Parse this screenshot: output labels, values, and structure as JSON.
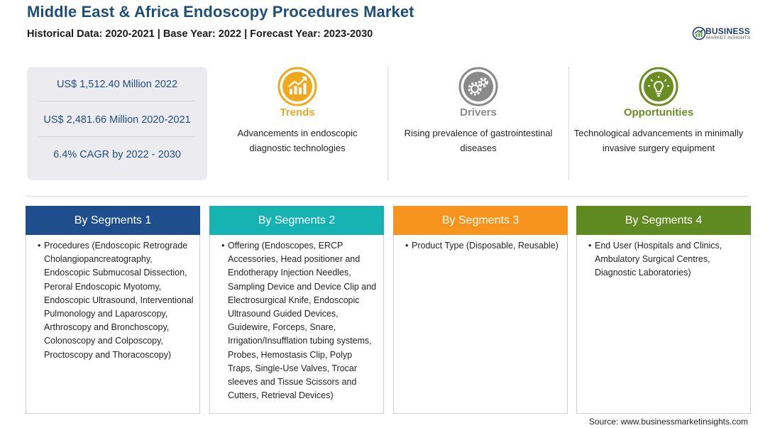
{
  "header": {
    "title": "Middle East & Africa Endoscopy Procedures Market",
    "subtitle": "Historical Data: 2020-2021 | Base Year: 2022 | Forecast Year: 2023-2030"
  },
  "logo": {
    "word": "BUSINESS",
    "sub": "MARKET INSIGHTS",
    "color": "#1f3d6b",
    "accent": "#6aa84f"
  },
  "stats": [
    "US$ 1,512.40 Million 2022",
    "US$ 2,481.66 Million 2020-2021",
    "6.4% CAGR by 2022 - 2030"
  ],
  "features": [
    {
      "title": "Trends",
      "description": "Advancements in endoscopic diagnostic technologies",
      "color": "#f0a81e",
      "icon": "trend-chart-icon"
    },
    {
      "title": "Drivers",
      "description": "Rising prevalence of gastrointestinal diseases",
      "color": "#8a8a8a",
      "icon": "gears-icon"
    },
    {
      "title": "Opportunities",
      "description": "Technological advancements in minimally invasive surgery equipment",
      "color": "#6b8e23",
      "icon": "lightbulb-icon"
    }
  ],
  "segments": [
    {
      "title": "By Segments 1",
      "color": "#1f4e8c",
      "items": [
        "Procedures (Endoscopic Retrograde Cholangiopancreatography, Endoscopic Submucosal Dissection, Peroral Endoscopic Myotomy, Endoscopic Ultrasound, Interventional Pulmonology and Laparoscopy, Arthroscopy and Bronchoscopy, Colonoscopy and Colposcopy, Proctoscopy and Thoracoscopy)"
      ]
    },
    {
      "title": "By Segments 2",
      "color": "#17b3b3",
      "items": [
        "Offering (Endoscopes, ERCP Accessories, Head positioner and Endotherapy Injection Needles, Sampling Device and Device Clip and Electrosurgical Knife, Endoscopic Ultrasound Guided Devices, Guidewire, Forceps, Snare, Irrigation/Insufflation tubing systems, Probes, Hemostasis Clip, Polyp Traps, Single-Use Valves, Trocar sleeves and Tissue Scissors and Cutters, Retrieval Devices)"
      ]
    },
    {
      "title": "By Segments 3",
      "color": "#f7941d",
      "items": [
        "Product Type (Disposable, Reusable)"
      ]
    },
    {
      "title": "By Segments 4",
      "color": "#5f8a22",
      "items": [
        "End User (Hospitals and Clinics, Ambulatory Surgical Centres, Diagnostic Laboratories)"
      ]
    }
  ],
  "source": "Source: www.businessmarketinsights.com"
}
